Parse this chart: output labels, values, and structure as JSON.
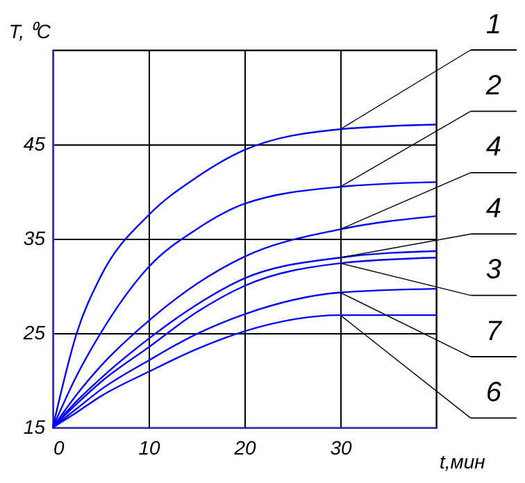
{
  "chart_data": {
    "type": "line",
    "xlabel": "t,мин",
    "ylabel": "T, ⁰C",
    "x": [
      0,
      2.5,
      5,
      10,
      15,
      20,
      30,
      40
    ],
    "series": [
      {
        "name": "1",
        "color": "#0000ff",
        "values": [
          15,
          25,
          31,
          37.5,
          41.5,
          44.4,
          46.6,
          47.1
        ]
      },
      {
        "name": "2",
        "color": "#0000ff",
        "values": [
          15,
          20.5,
          25,
          32.0,
          36.0,
          38.7,
          40.5,
          41.0
        ]
      },
      {
        "name": "4",
        "color": "#0000ff",
        "values": [
          15,
          18.5,
          21.5,
          26.3,
          30.2,
          33.1,
          36.0,
          37.4
        ]
      },
      {
        "name": "4",
        "color": "#0000ff",
        "values": [
          15,
          17.8,
          20.2,
          24.4,
          28.0,
          30.8,
          33.0,
          33.7
        ]
      },
      {
        "name": "3",
        "color": "#0000ff",
        "values": [
          15,
          17.5,
          19.8,
          23.5,
          27.2,
          30.0,
          32.4,
          33.0
        ]
      },
      {
        "name": "7",
        "color": "#0000ff",
        "values": [
          15,
          17.0,
          19.0,
          22.1,
          24.9,
          27.0,
          29.3,
          29.7
        ]
      },
      {
        "name": "6",
        "color": "#0000ff",
        "values": [
          15,
          16.6,
          18.3,
          20.9,
          23.3,
          25.2,
          26.9,
          26.9
        ]
      }
    ],
    "xlim": [
      0,
      40
    ],
    "ylim": [
      15,
      55
    ],
    "xticks": [
      0,
      10,
      20,
      30
    ],
    "yticks": [
      15,
      25,
      35,
      45
    ],
    "grid": true,
    "legend": false,
    "marker": "none",
    "line_style": "solid"
  }
}
